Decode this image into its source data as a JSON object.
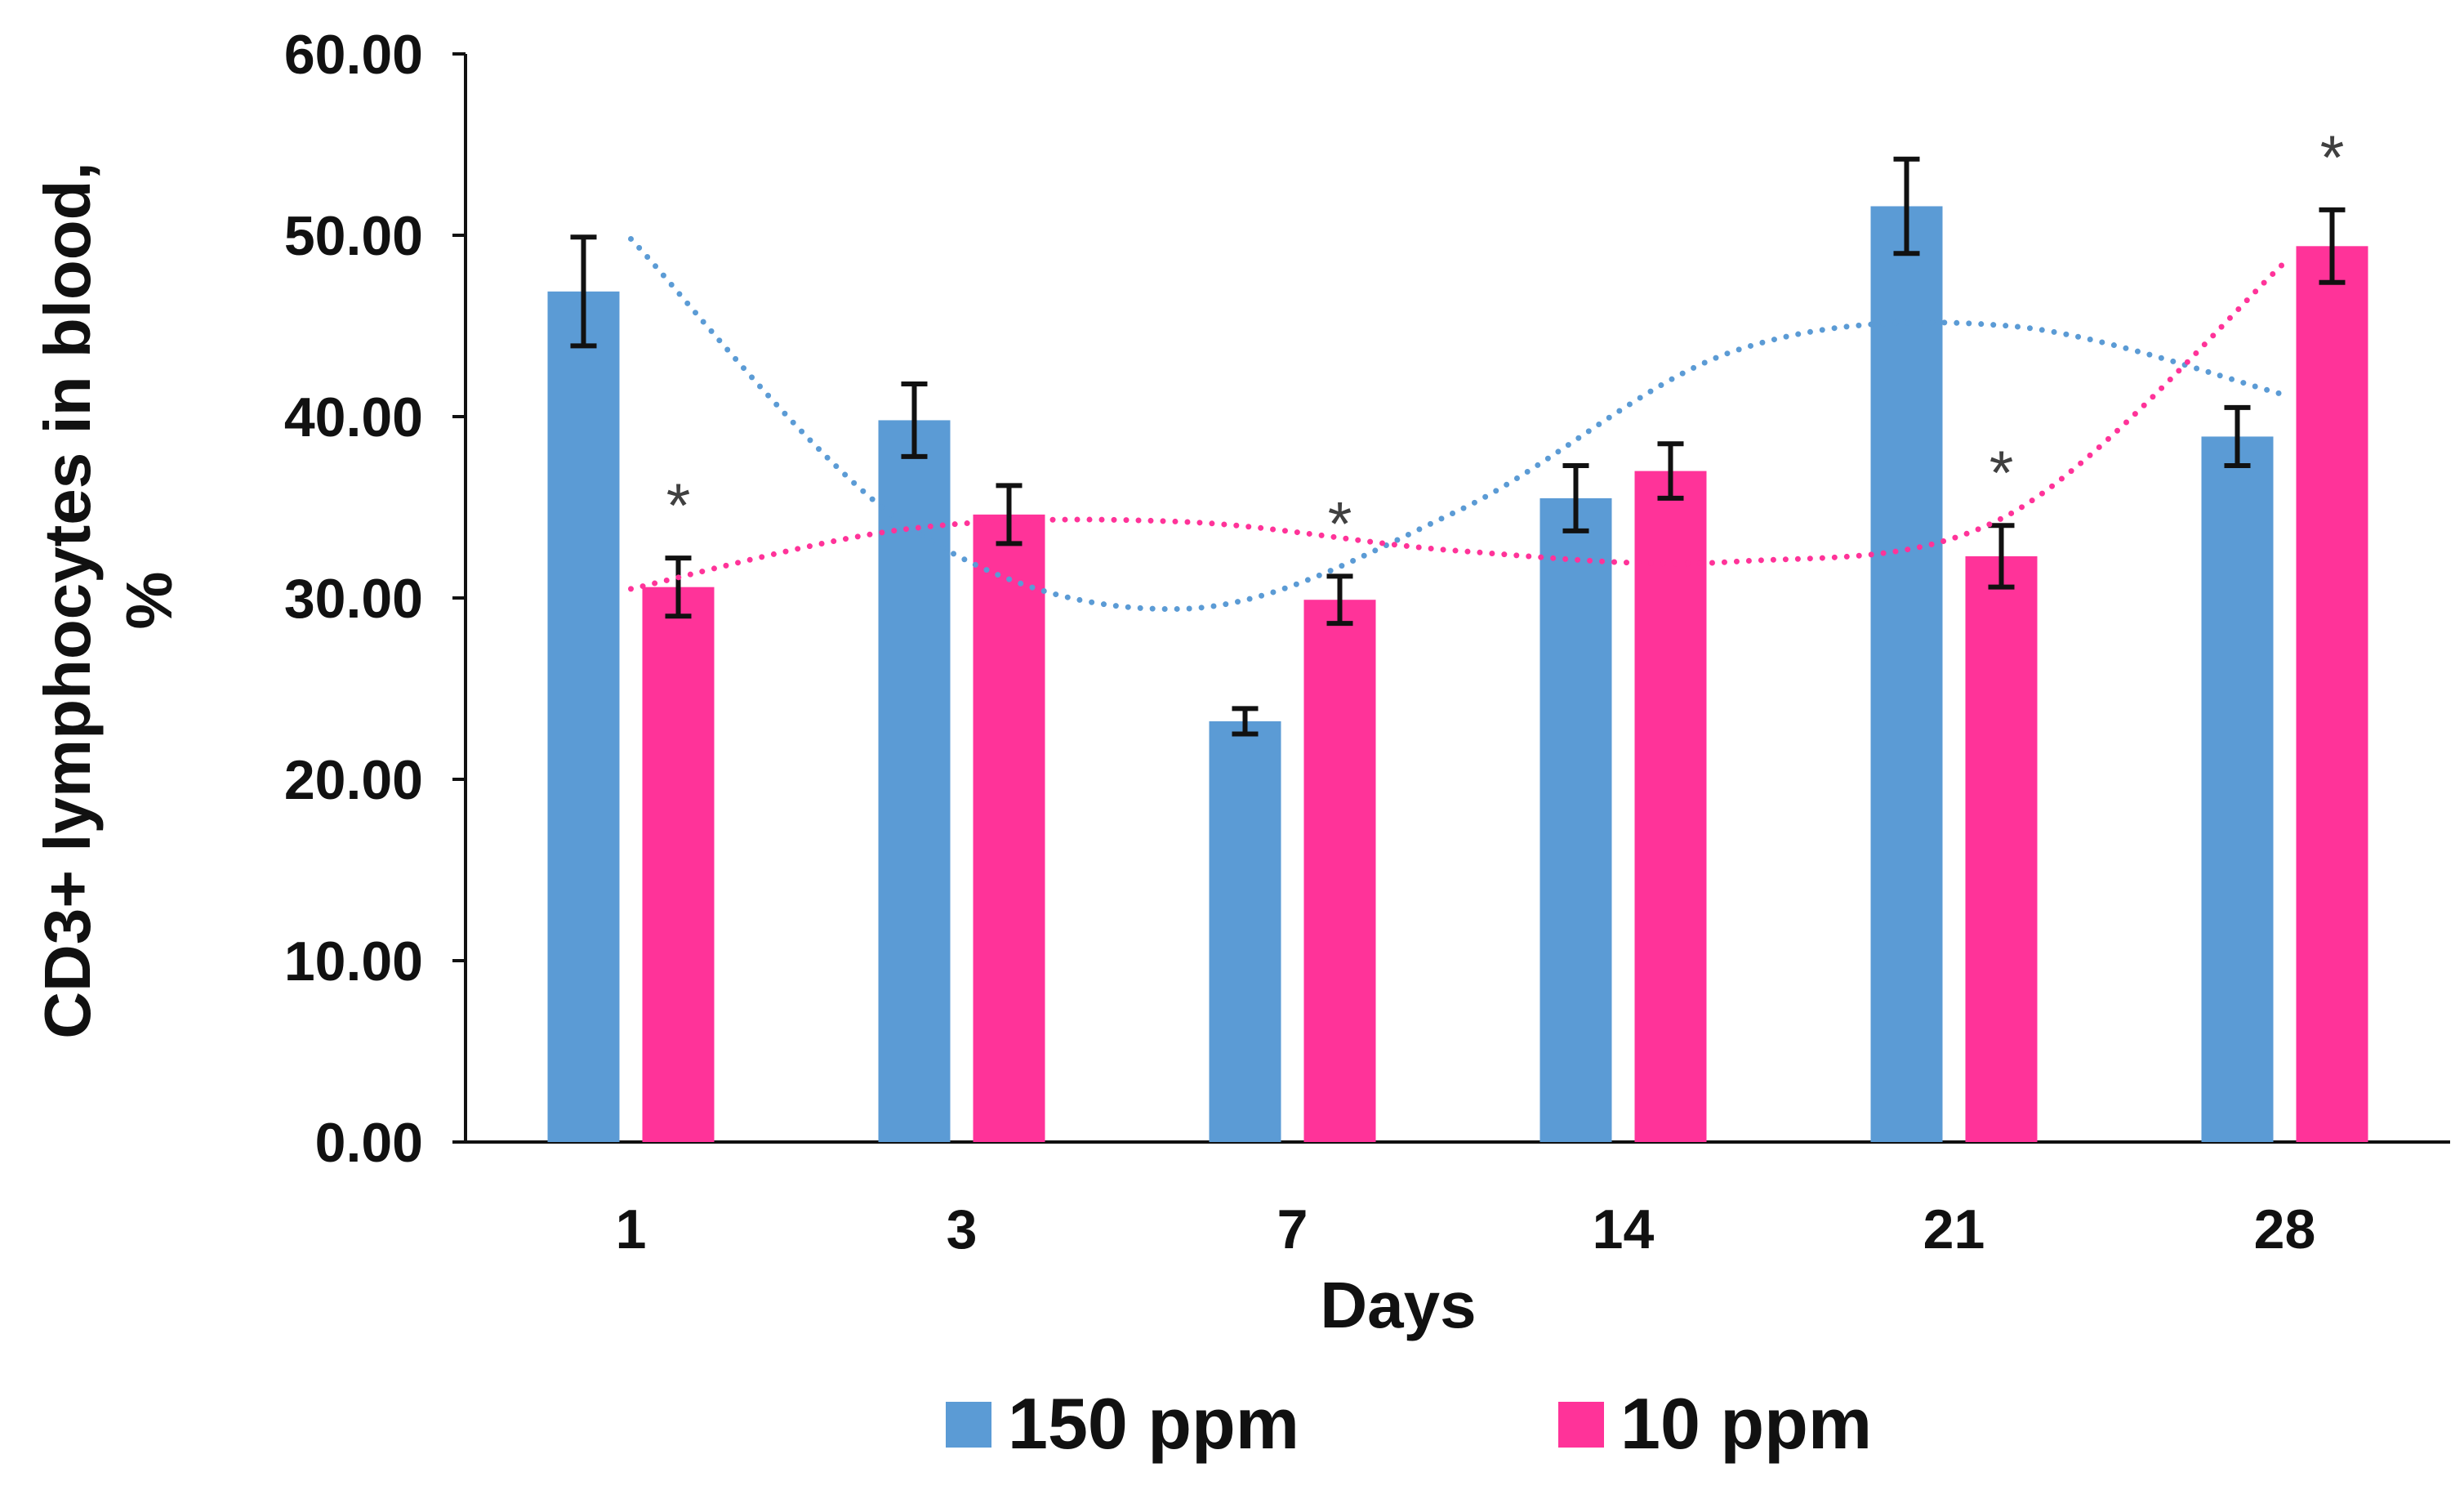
{
  "chart_data": {
    "type": "bar",
    "title": "",
    "xlabel": "Days",
    "ylabel_lines": [
      "CD3+ lymphocytes in blood,",
      "%"
    ],
    "categories": [
      "1",
      "3",
      "7",
      "14",
      "21",
      "28"
    ],
    "y_ticks": [
      "0.00",
      "10.00",
      "20.00",
      "30.00",
      "40.00",
      "50.00",
      "60.00"
    ],
    "ylim": [
      0,
      60
    ],
    "grid": false,
    "legend_position": "bottom",
    "series": [
      {
        "name": "150 ppm",
        "color": "#5B9BD5",
        "values": [
          46.9,
          39.8,
          23.2,
          35.5,
          51.6,
          38.9
        ],
        "errors": [
          3.0,
          2.0,
          0.7,
          1.8,
          2.6,
          1.6
        ],
        "significance": [
          "",
          "",
          "",
          "",
          "",
          ""
        ],
        "trendline": [
          49.8,
          34.0,
          29.4,
          34.8,
          43.6,
          45.0,
          41.2
        ]
      },
      {
        "name": "10 ppm",
        "color": "#FF3399",
        "values": [
          30.6,
          34.6,
          29.9,
          37.0,
          32.3,
          49.4
        ],
        "errors": [
          1.6,
          1.6,
          1.3,
          1.5,
          1.7,
          2.0
        ],
        "significance": [
          "*",
          "",
          "*",
          "",
          "*",
          "*"
        ],
        "trendline": [
          30.5,
          33.8,
          34.2,
          32.6,
          32.0,
          34.6,
          48.5
        ]
      }
    ]
  }
}
